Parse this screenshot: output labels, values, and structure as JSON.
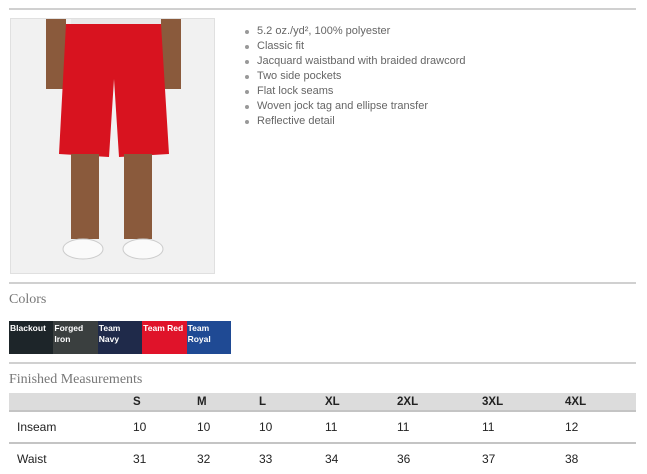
{
  "product": {
    "image_alt": "red athletic shorts on model",
    "features": [
      "5.2 oz./yd², 100% polyester",
      "Classic fit",
      "Jacquard waistband with braided drawcord",
      "Two side pockets",
      "Flat lock seams",
      "Woven jock tag and ellipse transfer",
      "Reflective detail"
    ]
  },
  "colors": {
    "heading": "Colors",
    "swatches": [
      {
        "name": "Blackout",
        "color": "#1d2529"
      },
      {
        "name": "Forged Iron",
        "color": "#3a3f3f"
      },
      {
        "name": "Team Navy",
        "color": "#1f2a4a"
      },
      {
        "name": "Team Red",
        "color": "#e0132a"
      },
      {
        "name": "Team Royal",
        "color": "#1f4a94"
      }
    ]
  },
  "measurements": {
    "heading": "Finished Measurements",
    "columns": [
      "",
      "S",
      "M",
      "L",
      "XL",
      "2XL",
      "3XL",
      "4XL"
    ],
    "rows": [
      [
        "Inseam",
        "10",
        "10",
        "10",
        "11",
        "11",
        "11",
        "12"
      ],
      [
        "Waist",
        "31",
        "32",
        "33",
        "34",
        "36",
        "37",
        "38"
      ]
    ]
  }
}
